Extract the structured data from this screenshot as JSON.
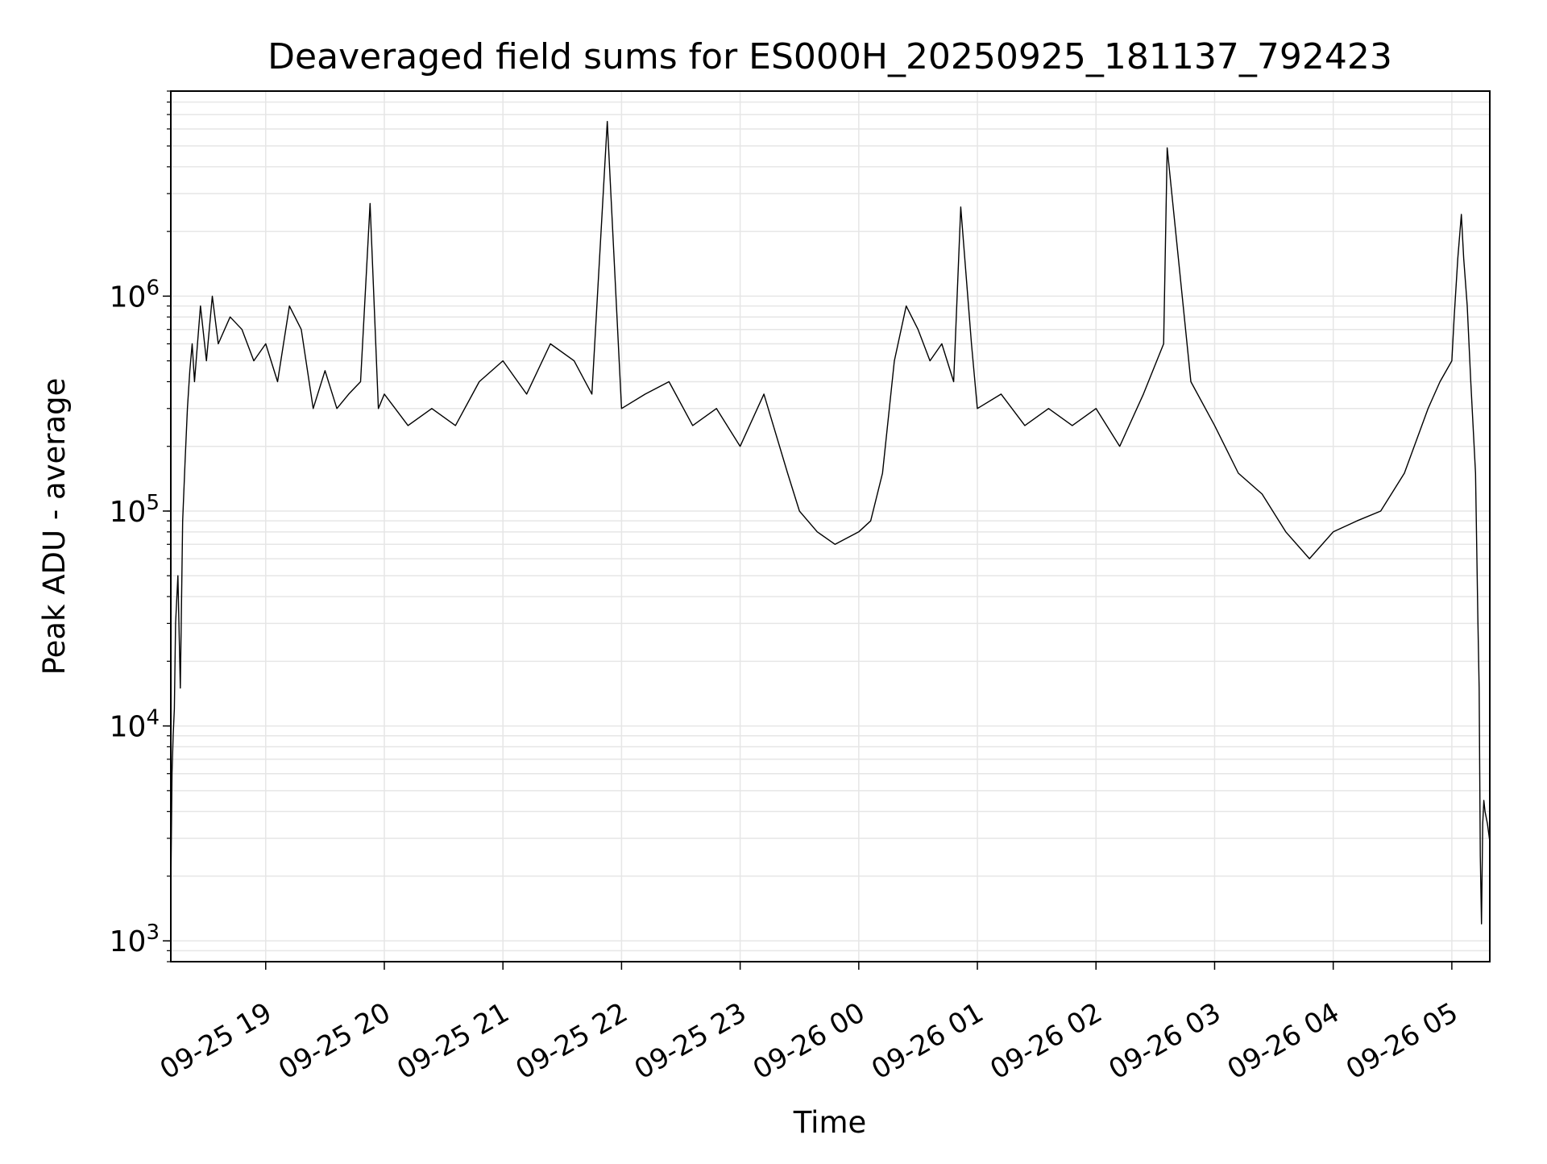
{
  "chart_data": {
    "type": "line",
    "title": "Deaveraged field sums for ES000H_20250925_181137_792423",
    "xlabel": "Time",
    "ylabel": "Peak ADU - average",
    "yscale": "log",
    "ylim": [
      800,
      9000000
    ],
    "xlim_hours": [
      -5.8,
      5.32
    ],
    "x_origin": "09-26 00:00",
    "x_unit": "hours relative to 09-26 00:00",
    "grid": true,
    "line_color": "#000000",
    "grid_color": "#e6e6e6",
    "x_ticks": [
      {
        "value": -5,
        "label": "09-25 19"
      },
      {
        "value": -4,
        "label": "09-25 20"
      },
      {
        "value": -3,
        "label": "09-25 21"
      },
      {
        "value": -2,
        "label": "09-25 22"
      },
      {
        "value": -1,
        "label": "09-25 23"
      },
      {
        "value": 0,
        "label": "09-26 00"
      },
      {
        "value": 1,
        "label": "09-26 01"
      },
      {
        "value": 2,
        "label": "09-26 02"
      },
      {
        "value": 3,
        "label": "09-26 03"
      },
      {
        "value": 4,
        "label": "09-26 04"
      },
      {
        "value": 5,
        "label": "09-26 05"
      }
    ],
    "y_ticks": [
      {
        "value": 1000,
        "base": "10",
        "exp": "3"
      },
      {
        "value": 10000,
        "base": "10",
        "exp": "4"
      },
      {
        "value": 100000,
        "base": "10",
        "exp": "5"
      },
      {
        "value": 1000000,
        "base": "10",
        "exp": "6"
      }
    ],
    "series": [
      {
        "name": "deaveraged field sum",
        "x": [
          -5.8,
          -5.79,
          -5.78,
          -5.77,
          -5.76,
          -5.74,
          -5.72,
          -5.7,
          -5.68,
          -5.66,
          -5.64,
          -5.62,
          -5.6,
          -5.55,
          -5.5,
          -5.45,
          -5.4,
          -5.3,
          -5.2,
          -5.1,
          -5.0,
          -4.9,
          -4.8,
          -4.7,
          -4.6,
          -4.5,
          -4.4,
          -4.3,
          -4.2,
          -4.12,
          -4.05,
          -4.0,
          -3.8,
          -3.6,
          -3.4,
          -3.2,
          -3.0,
          -2.8,
          -2.6,
          -2.4,
          -2.25,
          -2.12,
          -2.0,
          -1.8,
          -1.6,
          -1.4,
          -1.2,
          -1.0,
          -0.8,
          -0.6,
          -0.5,
          -0.35,
          -0.2,
          0.0,
          0.1,
          0.2,
          0.3,
          0.4,
          0.5,
          0.6,
          0.7,
          0.8,
          0.86,
          0.95,
          1.0,
          1.2,
          1.4,
          1.6,
          1.8,
          2.0,
          2.2,
          2.4,
          2.57,
          2.6,
          2.8,
          3.0,
          3.2,
          3.4,
          3.6,
          3.8,
          4.0,
          4.2,
          4.4,
          4.6,
          4.8,
          4.9,
          5.0,
          5.02,
          5.05,
          5.08,
          5.1,
          5.13,
          5.16,
          5.2,
          5.22,
          5.23,
          5.24,
          5.25,
          5.26,
          5.27,
          5.28,
          5.3,
          5.32
        ],
        "values": [
          1700,
          6000,
          9000,
          12000,
          30000,
          50000,
          15000,
          90000,
          170000,
          300000,
          450000,
          600000,
          400000,
          900000,
          500000,
          1000000,
          600000,
          800000,
          700000,
          500000,
          600000,
          400000,
          900000,
          700000,
          300000,
          450000,
          300000,
          350000,
          400000,
          2700000,
          300000,
          350000,
          250000,
          300000,
          250000,
          400000,
          500000,
          350000,
          600000,
          500000,
          350000,
          6500000,
          300000,
          350000,
          400000,
          250000,
          300000,
          200000,
          350000,
          150000,
          100000,
          80000,
          70000,
          80000,
          90000,
          150000,
          500000,
          900000,
          700000,
          500000,
          600000,
          400000,
          2600000,
          600000,
          300000,
          350000,
          250000,
          300000,
          250000,
          300000,
          200000,
          350000,
          600000,
          4900000,
          400000,
          250000,
          150000,
          120000,
          80000,
          60000,
          80000,
          90000,
          100000,
          150000,
          300000,
          400000,
          500000,
          800000,
          1500000,
          2400000,
          1500000,
          900000,
          400000,
          150000,
          30000,
          15000,
          2500,
          1200,
          3500,
          4500,
          4000,
          3500,
          2900
        ]
      }
    ]
  }
}
